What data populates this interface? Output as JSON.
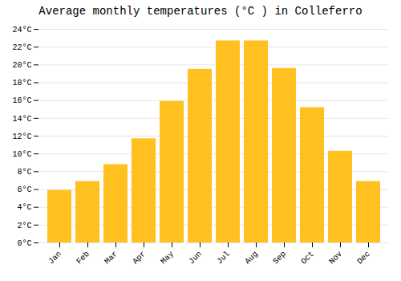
{
  "chart_data": {
    "type": "bar",
    "title": "Average monthly temperatures (°C ) in Colleferro",
    "categories": [
      "Jan",
      "Feb",
      "Mar",
      "Apr",
      "May",
      "Jun",
      "Jul",
      "Aug",
      "Sep",
      "Oct",
      "Nov",
      "Dec"
    ],
    "values": [
      5.9,
      6.9,
      8.8,
      11.7,
      15.9,
      19.5,
      22.7,
      22.7,
      19.6,
      15.2,
      10.3,
      6.9
    ],
    "color": "#FFC020",
    "ylim": [
      0,
      24
    ],
    "yticks": [
      {
        "value": 0,
        "label": "0°C"
      },
      {
        "value": 2,
        "label": "2°C"
      },
      {
        "value": 4,
        "label": "4°C"
      },
      {
        "value": 6,
        "label": "6°C"
      },
      {
        "value": 8,
        "label": "8°C"
      },
      {
        "value": 10,
        "label": "10°C"
      },
      {
        "value": 12,
        "label": "12°C"
      },
      {
        "value": 14,
        "label": "14°C"
      },
      {
        "value": 16,
        "label": "16°C"
      },
      {
        "value": 18,
        "label": "18°C"
      },
      {
        "value": 20,
        "label": "20°C"
      },
      {
        "value": 22,
        "label": "22°C"
      },
      {
        "value": 24,
        "label": "24°C"
      }
    ],
    "grid": true
  }
}
